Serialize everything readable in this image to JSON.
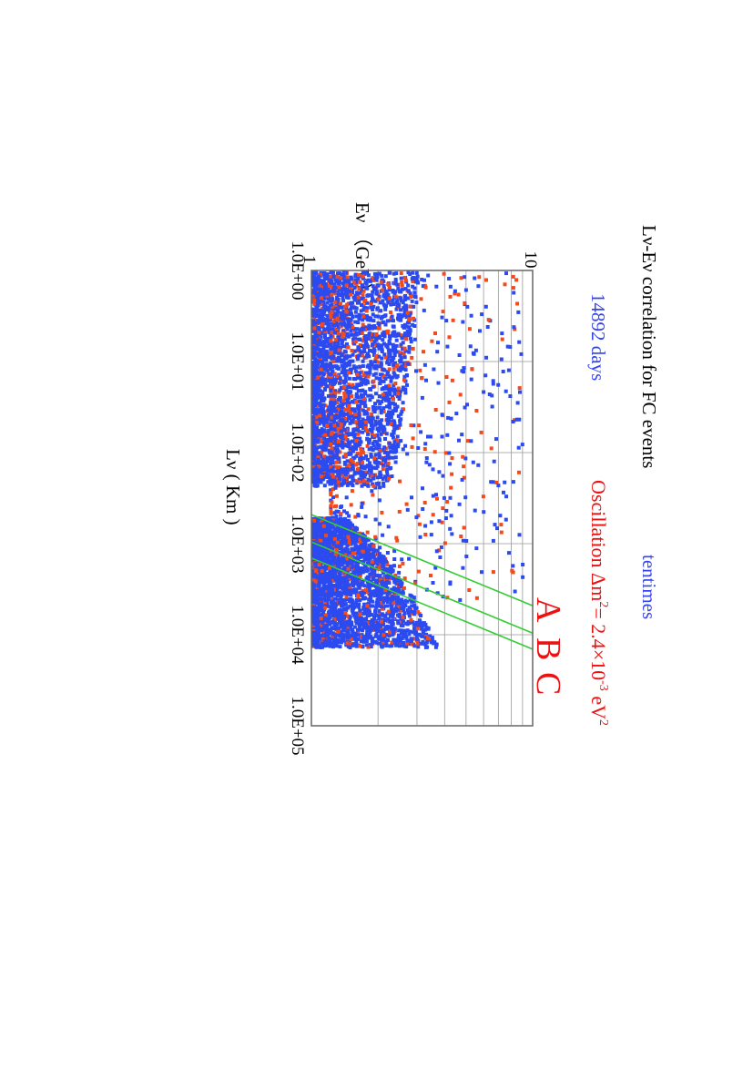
{
  "labels": {
    "title": "Lν-Eν correlation for FC events",
    "days": "14892 days",
    "times": "tentimes",
    "osc_prefix": "Oscillation Δm",
    "osc_eq": "= 2.4×10",
    "osc_exp": "-3",
    "osc_unit": " eV",
    "osc_sq": "2",
    "region_a": "A",
    "region_b": "B",
    "region_c": "C"
  },
  "colors": {
    "text": "#000000",
    "blue_text": "#3344ee",
    "red_text": "#ee1111",
    "series_blue": "#2b4af0",
    "series_red": "#f24a1c",
    "lines": "#33cc33",
    "grid": "#999999"
  },
  "chart_data": {
    "type": "scatter",
    "title": "Lν-Eν correlation for FC events",
    "xlabel": "Lν ( Km )",
    "ylabel": "Eν （GeV）",
    "x_scale": "log",
    "y_scale": "log",
    "xlim": [
      1,
      100000
    ],
    "ylim": [
      1,
      10
    ],
    "x_ticks": [
      "1.0E+00",
      "1.0E+01",
      "1.0E+02",
      "1.0E+03",
      "1.0E+04",
      "1.0E+05"
    ],
    "y_ticks": [
      "1",
      "10"
    ],
    "grid": true,
    "orientation": "rotated 90° clockwise",
    "series": [
      {
        "name": "",
        "color": "blue",
        "approx_count": 6000
      },
      {
        "name": "",
        "color": "red",
        "approx_count": 1200
      }
    ],
    "dense_bands": [
      {
        "region": "L < 2.2E+02 km (downward)",
        "E_range": [
          1.0,
          3.2
        ]
      },
      {
        "region": "L 5E+02 – 1.3E+04 km (upward)",
        "E_range": [
          1.0,
          4.5
        ]
      }
    ],
    "lines": [
      {
        "label": "A",
        "points": [
          [
            480,
            1.0
          ],
          [
            4800,
            10.0
          ]
        ]
      },
      {
        "label": "B",
        "points": [
          [
            960,
            1.0
          ],
          [
            9600,
            10.0
          ]
        ]
      },
      {
        "label": "C",
        "points": [
          [
            1440,
            1.0
          ],
          [
            14400,
            10.0
          ]
        ]
      }
    ]
  }
}
